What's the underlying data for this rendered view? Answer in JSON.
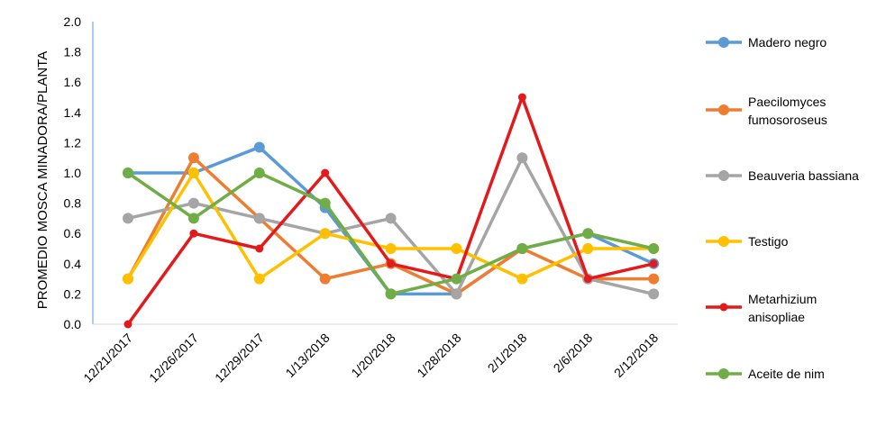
{
  "chart_data": {
    "type": "line",
    "title": "",
    "xlabel": "",
    "ylabel": "PROMEDIO MOSCA MINADORA/PLANTA",
    "ylim": [
      0,
      2.0
    ],
    "yticks": [
      "0.0",
      "0.2",
      "0.4",
      "0.6",
      "0.8",
      "1.0",
      "1.2",
      "1.4",
      "1.6",
      "1.8",
      "2.0"
    ],
    "categories": [
      "12/21/2017",
      "12/26/2017",
      "12/29/2017",
      "1/13/2018",
      "1/20/2018",
      "1/28/2018",
      "2/1/2018",
      "2/6/2018",
      "2/12/2018"
    ],
    "grid": false,
    "legend_position": "right",
    "series": [
      {
        "name": "Madero negro",
        "color": "#5B9BD5",
        "values": [
          1.0,
          1.0,
          1.17,
          0.77,
          0.2,
          0.2,
          0.5,
          0.6,
          0.4
        ]
      },
      {
        "name": "Paecilomyces fumosoroseus",
        "legend_lines": [
          "Paecilomyces",
          "fumosoroseus"
        ],
        "color": "#ED7D31",
        "values": [
          0.3,
          1.1,
          0.7,
          0.3,
          0.4,
          0.2,
          0.5,
          0.3,
          0.3
        ]
      },
      {
        "name": "Beauveria bassiana",
        "color": "#A5A5A5",
        "values": [
          0.7,
          0.8,
          0.7,
          0.6,
          0.7,
          0.2,
          1.1,
          0.3,
          0.2
        ]
      },
      {
        "name": "Testigo",
        "color": "#FFC000",
        "values": [
          0.3,
          1.0,
          0.3,
          0.6,
          0.5,
          0.5,
          0.3,
          0.5,
          0.5
        ]
      },
      {
        "name": "Metarhizium anisopliae",
        "legend_lines": [
          "Metarhizium",
          "anisopliae"
        ],
        "color": "#E31A1C",
        "values": [
          0.0,
          0.6,
          0.5,
          1.0,
          0.4,
          0.3,
          1.5,
          0.3,
          0.4
        ]
      },
      {
        "name": "Aceite de nim",
        "color": "#70AD47",
        "values": [
          1.0,
          0.7,
          1.0,
          0.8,
          0.2,
          0.3,
          0.5,
          0.6,
          0.5
        ]
      }
    ]
  }
}
